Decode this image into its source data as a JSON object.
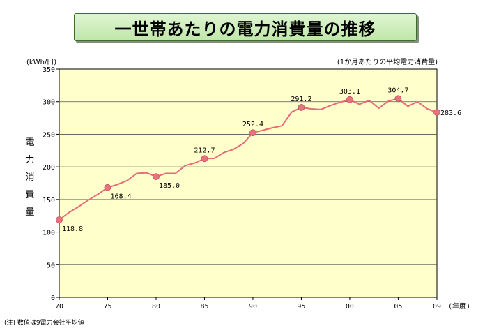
{
  "title": "一世帯あたりの電力消費量の推移",
  "unit_left": "(kWh/口)",
  "unit_right": "(1か月あたりの平均電力消費量)",
  "y_axis_label": "電力消費量",
  "footnote": "(注) 数値は9電力会社平均値",
  "colors": {
    "plot_bg": "#ffffcc",
    "line": "#e86a78",
    "marker": "#e8737f",
    "grid": "#555555"
  },
  "chart_data": {
    "type": "line",
    "title": "一世帯あたりの電力消費量の推移",
    "xlabel": "(年度)",
    "ylabel": "電力消費量",
    "xlim": [
      1970,
      2009
    ],
    "ylim": [
      0,
      350
    ],
    "y_ticks": [
      0,
      50,
      100,
      150,
      200,
      250,
      300,
      350
    ],
    "x_ticks": [
      {
        "value": 1970,
        "label": "70"
      },
      {
        "value": 1975,
        "label": "75"
      },
      {
        "value": 1980,
        "label": "80"
      },
      {
        "value": 1985,
        "label": "85"
      },
      {
        "value": 1990,
        "label": "90"
      },
      {
        "value": 1995,
        "label": "95"
      },
      {
        "value": 2000,
        "label": "00"
      },
      {
        "value": 2005,
        "label": "05"
      },
      {
        "value": 2009,
        "label": "09"
      }
    ],
    "grid": true,
    "series": [
      {
        "name": "1か月あたりの平均電力消費量",
        "x": [
          1970,
          1971,
          1972,
          1973,
          1974,
          1975,
          1976,
          1977,
          1978,
          1979,
          1980,
          1981,
          1982,
          1983,
          1984,
          1985,
          1986,
          1987,
          1988,
          1989,
          1990,
          1991,
          1992,
          1993,
          1994,
          1995,
          1996,
          1997,
          1998,
          1999,
          2000,
          2001,
          2002,
          2003,
          2004,
          2005,
          2006,
          2007,
          2008,
          2009
        ],
        "values": [
          118.8,
          130,
          139,
          149,
          158,
          168.4,
          173,
          179,
          190,
          191,
          185.0,
          190,
          190,
          202,
          206,
          212.7,
          213,
          222,
          227,
          236,
          252.4,
          256,
          260,
          263,
          284,
          291.2,
          289,
          288,
          294,
          299,
          303.1,
          296,
          302,
          290,
          301,
          304.7,
          293,
          300,
          289,
          283.6
        ]
      }
    ],
    "annotations": [
      {
        "x": 1970,
        "value": 118.8,
        "label": "118.8",
        "position": "below-right"
      },
      {
        "x": 1975,
        "value": 168.4,
        "label": "168.4",
        "position": "below"
      },
      {
        "x": 1980,
        "value": 185.0,
        "label": "185.0",
        "position": "below-right"
      },
      {
        "x": 1985,
        "value": 212.7,
        "label": "212.7",
        "position": "above"
      },
      {
        "x": 1990,
        "value": 252.4,
        "label": "252.4",
        "position": "above"
      },
      {
        "x": 1995,
        "value": 291.2,
        "label": "291.2",
        "position": "above"
      },
      {
        "x": 2000,
        "value": 303.1,
        "label": "303.1",
        "position": "above"
      },
      {
        "x": 2005,
        "value": 304.7,
        "label": "304.7",
        "position": "above"
      },
      {
        "x": 2009,
        "value": 283.6,
        "label": "283.6",
        "position": "right"
      }
    ]
  }
}
